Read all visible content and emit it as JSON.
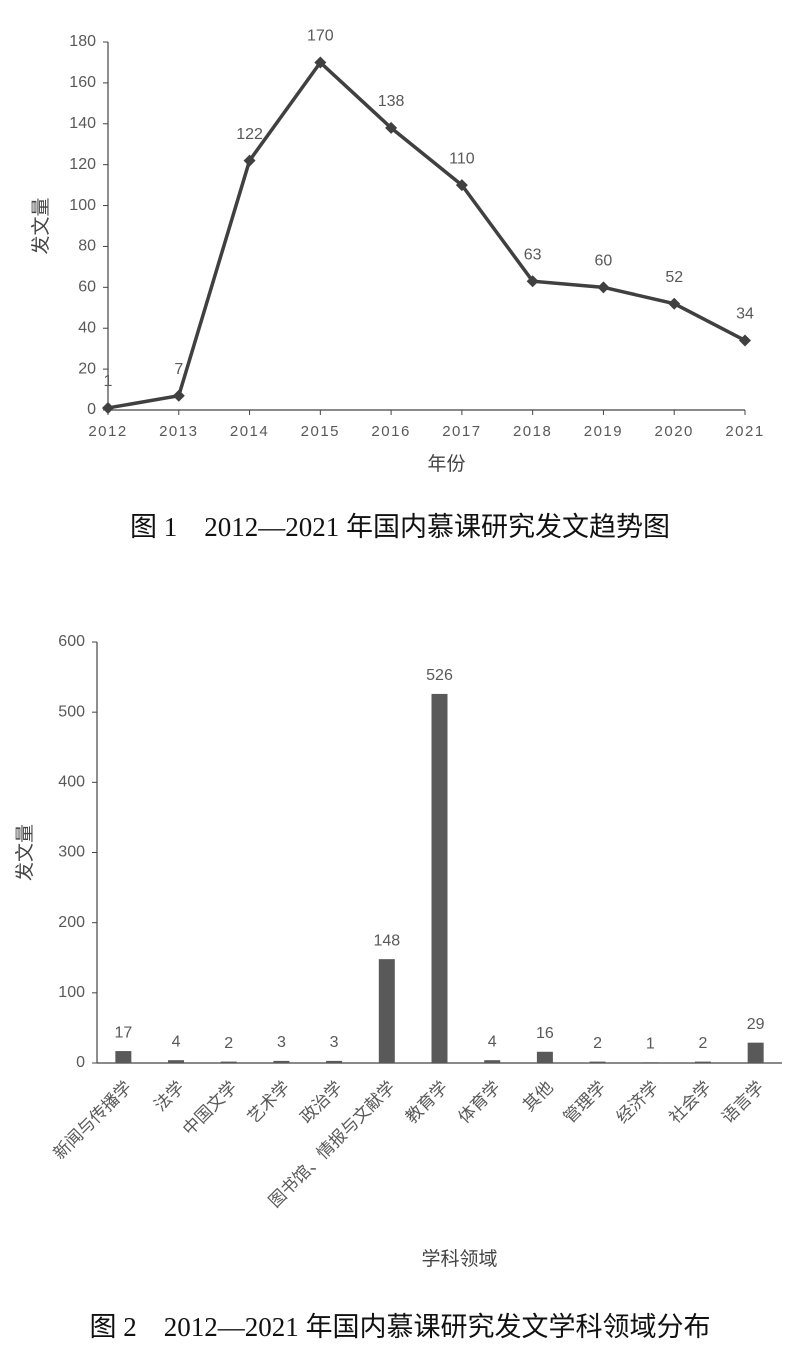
{
  "chart_data": [
    {
      "type": "line",
      "caption": "图 1　2012—2021 年国内慕课研究发文趋势图",
      "x_label": "年份",
      "y_label": "发文量",
      "categories": [
        "2012",
        "2013",
        "2014",
        "2015",
        "2016",
        "2017",
        "2018",
        "2019",
        "2020",
        "2021"
      ],
      "values": [
        1,
        7,
        122,
        170,
        138,
        110,
        63,
        60,
        52,
        34
      ],
      "color": "#404040",
      "ylim": [
        0,
        180
      ],
      "yticks": [
        0,
        20,
        40,
        60,
        80,
        100,
        120,
        140,
        160,
        180
      ]
    },
    {
      "type": "bar",
      "caption": "图 2　2012—2021 年国内慕课研究发文学科领域分布",
      "x_label": "学科领域",
      "y_label": "发文量",
      "categories": [
        "新闻与传播学",
        "法学",
        "中国文学",
        "艺术学",
        "政治学",
        "图书馆、情报与文献学",
        "教育学",
        "体育学",
        "其他",
        "管理学",
        "经济学",
        "社会学",
        "语言学"
      ],
      "values": [
        17,
        4,
        2,
        3,
        3,
        148,
        526,
        4,
        16,
        2,
        1,
        2,
        29
      ],
      "color": "#595959",
      "ylim": [
        0,
        600
      ],
      "yticks": [
        0,
        100,
        200,
        300,
        400,
        500,
        600
      ]
    }
  ]
}
